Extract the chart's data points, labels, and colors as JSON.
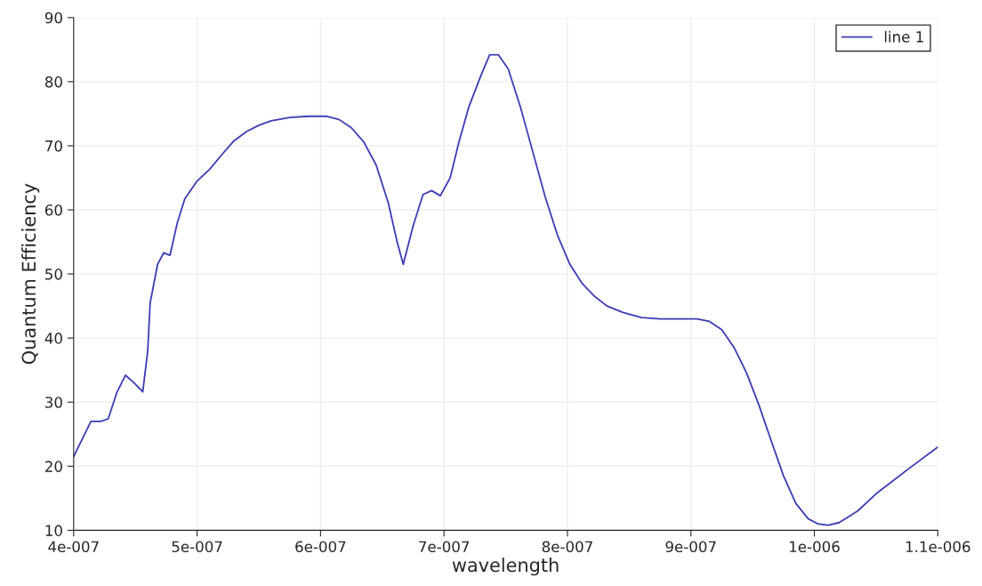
{
  "chart_data": {
    "type": "line",
    "xlabel": "wavelength",
    "ylabel": "Quantum Efficiency",
    "x": [
      4e-07,
      4.14e-07,
      4.22e-07,
      4.28e-07,
      4.35e-07,
      4.42e-07,
      4.49e-07,
      4.56e-07,
      4.6e-07,
      4.62e-07,
      4.68e-07,
      4.73e-07,
      4.78e-07,
      4.84e-07,
      4.9e-07,
      5e-07,
      5.1e-07,
      5.2e-07,
      5.3e-07,
      5.4e-07,
      5.5e-07,
      5.6e-07,
      5.75e-07,
      5.9e-07,
      6.05e-07,
      6.15e-07,
      6.25e-07,
      6.35e-07,
      6.45e-07,
      6.55e-07,
      6.62e-07,
      6.67e-07,
      6.75e-07,
      6.83e-07,
      6.9e-07,
      6.97e-07,
      7.05e-07,
      7.12e-07,
      7.2e-07,
      7.3e-07,
      7.37e-07,
      7.44e-07,
      7.52e-07,
      7.62e-07,
      7.72e-07,
      7.82e-07,
      7.92e-07,
      8.02e-07,
      8.12e-07,
      8.22e-07,
      8.32e-07,
      8.45e-07,
      8.6e-07,
      8.75e-07,
      8.9e-07,
      9.05e-07,
      9.15e-07,
      9.25e-07,
      9.35e-07,
      9.45e-07,
      9.55e-07,
      9.65e-07,
      9.75e-07,
      9.85e-07,
      9.95e-07,
      1.003e-06,
      1.011e-06,
      1.02e-06,
      1.035e-06,
      1.05e-06,
      1.075e-06,
      1.1e-06
    ],
    "series": [
      {
        "name": "line 1",
        "color": "#3c3cb4",
        "values": [
          21.5,
          27,
          27,
          27.4,
          31.5,
          34.2,
          33,
          31.6,
          38,
          45.5,
          51.5,
          53.3,
          52.9,
          58,
          61.7,
          64.5,
          66.3,
          68.6,
          70.8,
          72.2,
          73.2,
          73.9,
          74.4,
          74.6,
          74.6,
          74.1,
          72.8,
          70.6,
          67,
          61,
          55,
          51.5,
          57.5,
          62.4,
          63,
          62.2,
          65,
          70.5,
          76,
          81,
          84.2,
          84.2,
          82,
          76,
          69,
          62,
          56,
          51.5,
          48.5,
          46.5,
          45,
          44,
          43.2,
          43,
          43,
          43,
          42.6,
          41.3,
          38.5,
          34.6,
          29.6,
          24,
          18.5,
          14.2,
          11.8,
          11,
          10.8,
          11.2,
          13,
          15.7,
          19.4,
          23
        ]
      }
    ],
    "xlim": [
      4e-07,
      1.1e-06
    ],
    "xticks": [
      {
        "value": 4e-07,
        "label": "4e-007"
      },
      {
        "value": 5e-07,
        "label": "5e-007"
      },
      {
        "value": 6e-07,
        "label": "6e-007"
      },
      {
        "value": 7e-07,
        "label": "7e-007"
      },
      {
        "value": 8e-07,
        "label": "8e-007"
      },
      {
        "value": 9e-07,
        "label": "9e-007"
      },
      {
        "value": 1e-06,
        "label": "1e-006"
      },
      {
        "value": 1.1e-06,
        "label": "1.1e-006"
      }
    ],
    "ylim": [
      10,
      90
    ],
    "yticks": [
      10,
      20,
      30,
      40,
      50,
      60,
      70,
      80,
      90
    ],
    "grid": true,
    "legend": "top right",
    "line_style": "solid",
    "marker": "none"
  }
}
